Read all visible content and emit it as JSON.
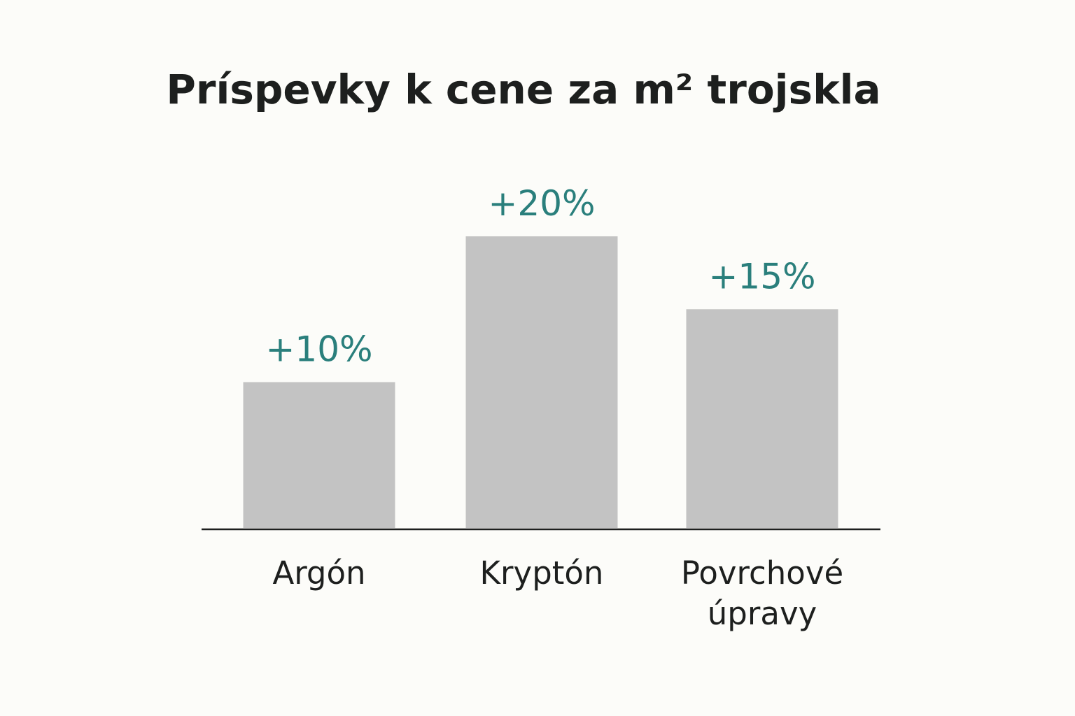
{
  "chart_data": {
    "type": "bar",
    "title": "Príspevky k cene za m² trojskla",
    "categories": [
      [
        "Argón"
      ],
      [
        "Kryptón"
      ],
      [
        "Povrchové",
        "úpravy"
      ]
    ],
    "values": [
      10,
      20,
      15
    ],
    "value_labels": [
      "+10%",
      "+20%",
      "+15%"
    ],
    "colors": {
      "bar": "#c3c3c3",
      "value_label": "#2a7f7c",
      "text": "#1d1f1e",
      "background": "#fcfcf9"
    }
  }
}
